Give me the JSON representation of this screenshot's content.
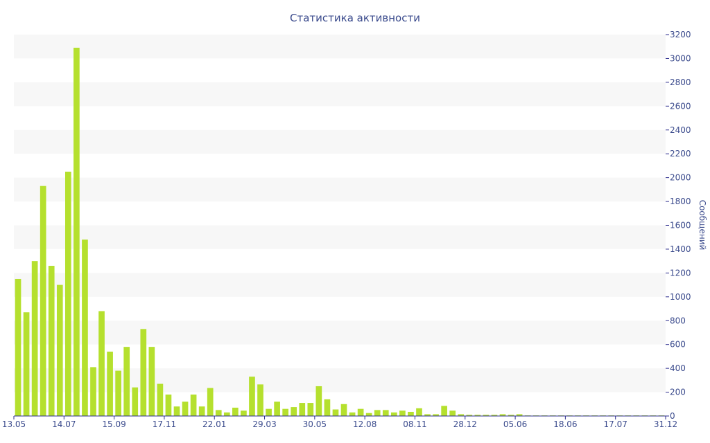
{
  "chart_data": {
    "type": "bar",
    "title": "Статистика активности",
    "xlabel": "",
    "ylabel": "Сообщений",
    "ylim": [
      0,
      3200
    ],
    "yticks": [
      0,
      200,
      400,
      600,
      800,
      1000,
      1200,
      1400,
      1600,
      1800,
      2000,
      2200,
      2400,
      2600,
      2800,
      3000,
      3200
    ],
    "x_tick_labels": [
      "13.05",
      "14.07",
      "15.09",
      "17.11",
      "22.01",
      "29.03",
      "30.05",
      "12.08",
      "08.11",
      "28.12",
      "05.06",
      "18.06",
      "17.07",
      "31.12"
    ],
    "grid": "alternating horizontal bands",
    "y_axis_position": "right",
    "colors": {
      "bar": "#b5e02e",
      "band": "#f7f7f7",
      "text": "#3a4a8c",
      "axis": "#2b2b8c"
    },
    "values": [
      1150,
      870,
      1300,
      1930,
      1260,
      1100,
      2050,
      3090,
      1480,
      410,
      880,
      540,
      380,
      580,
      240,
      730,
      580,
      270,
      180,
      80,
      120,
      180,
      80,
      235,
      50,
      30,
      70,
      45,
      330,
      265,
      60,
      120,
      60,
      75,
      110,
      110,
      250,
      140,
      55,
      100,
      30,
      60,
      25,
      50,
      50,
      30,
      45,
      35,
      65,
      15,
      15,
      85,
      45,
      15,
      10,
      10,
      10,
      10,
      15,
      10,
      15,
      5,
      5,
      5,
      5,
      5,
      5,
      5,
      5,
      5,
      5,
      5,
      5,
      5,
      5,
      5,
      5,
      5
    ]
  }
}
